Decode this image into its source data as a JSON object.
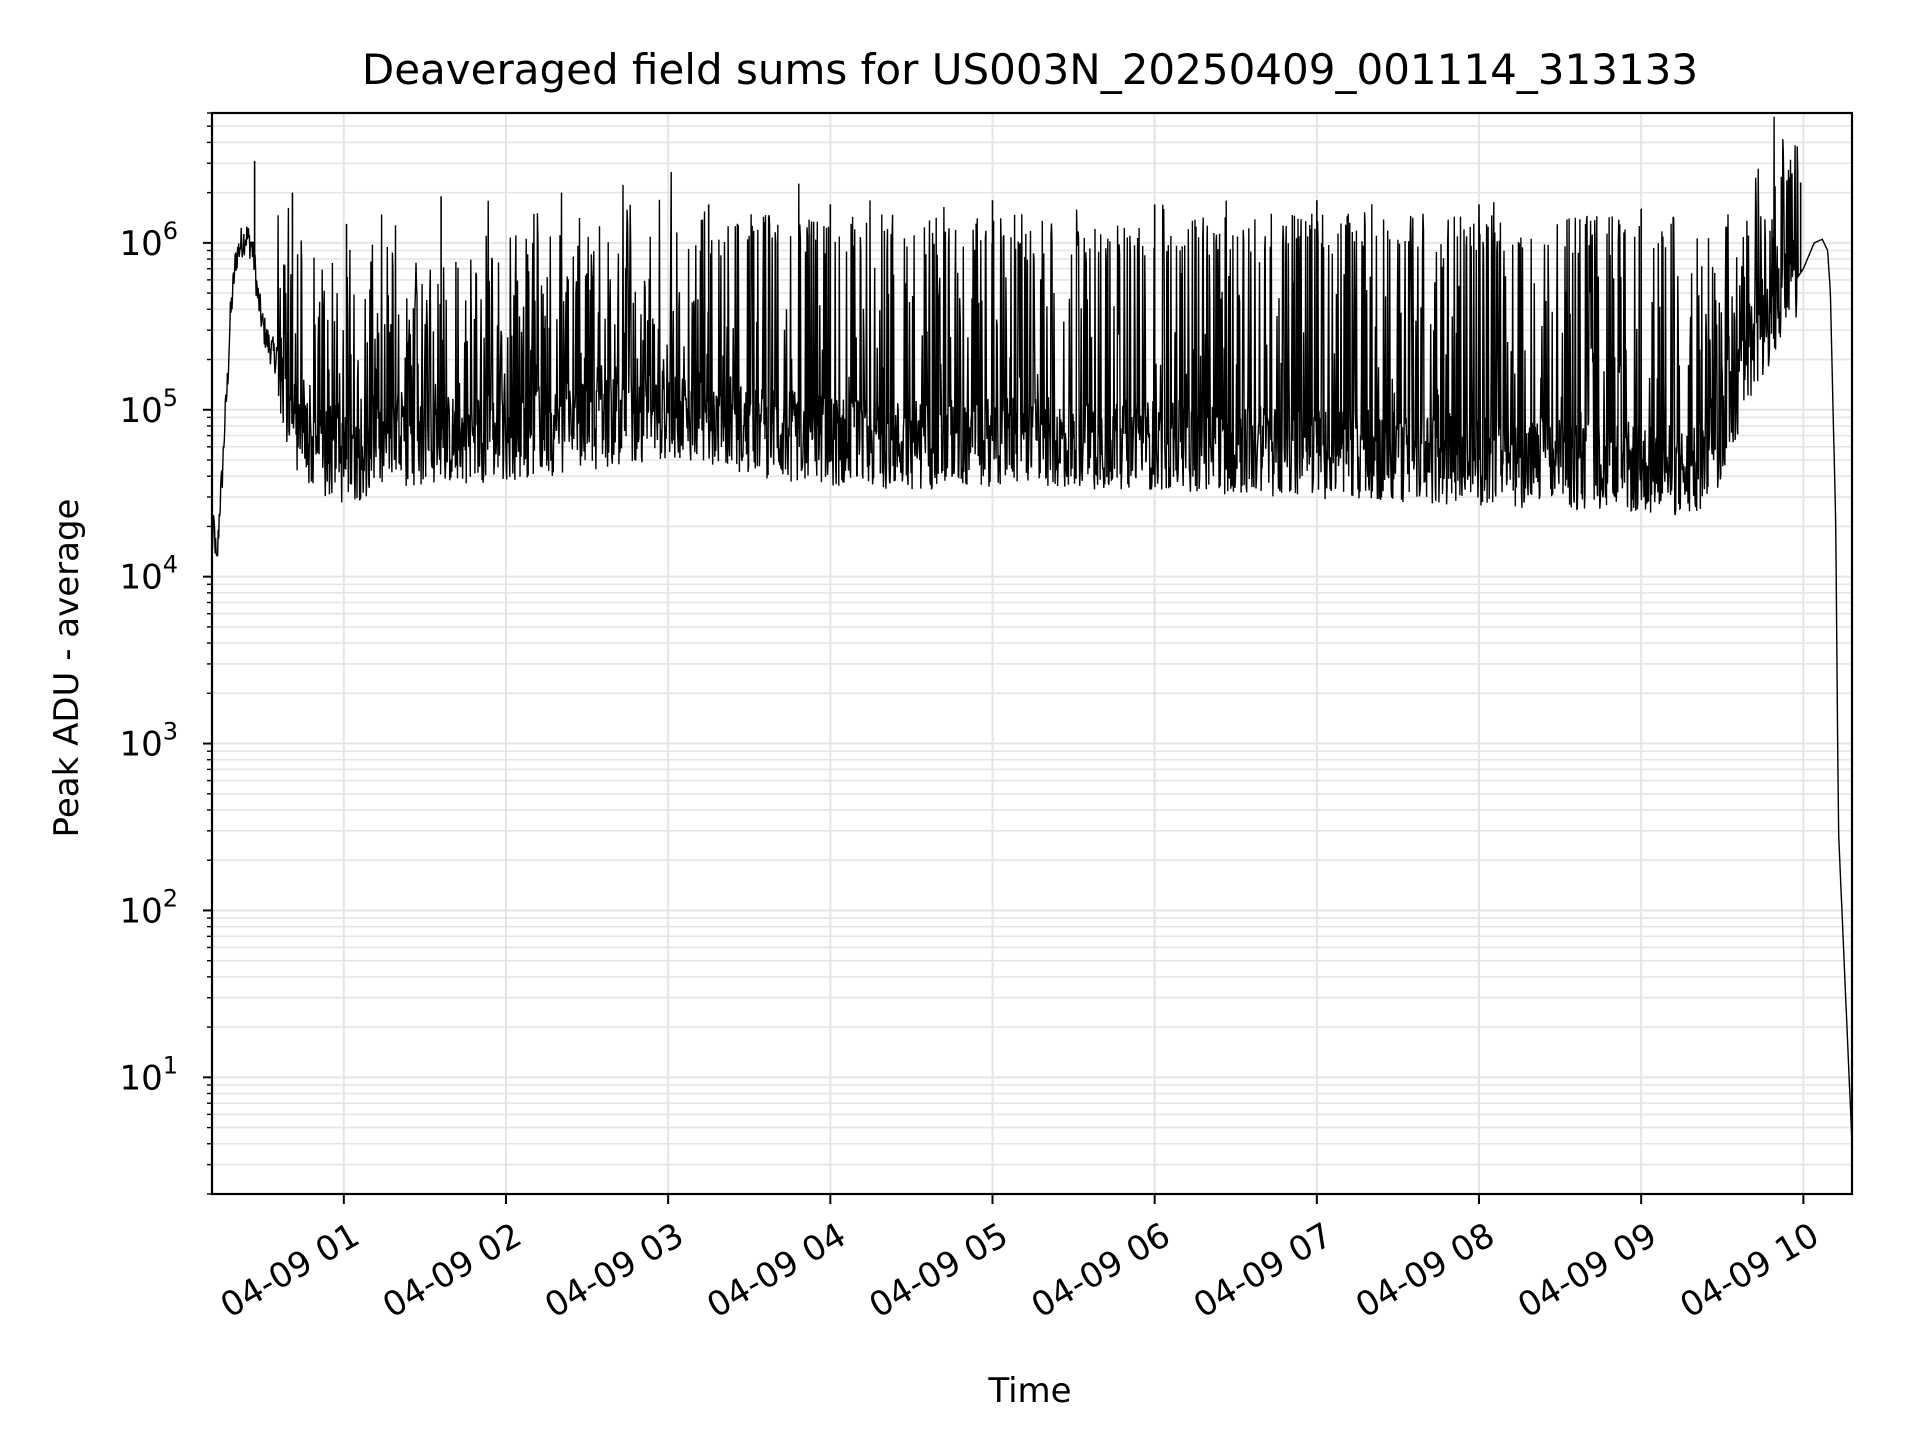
{
  "chart_data": {
    "type": "line",
    "title": "Deaveraged field sums for US003N_20250409_001114_313133",
    "xlabel": "Time",
    "ylabel": "Peak ADU - average",
    "yscale": "log",
    "ylim": [
      2,
      6000000
    ],
    "xlim": [
      "2025-04-09 00:11:14",
      "2025-04-09 10:18:00"
    ],
    "x_ticks": [
      {
        "value": "2025-04-09 01:00",
        "label": "04-09 01"
      },
      {
        "value": "2025-04-09 02:00",
        "label": "04-09 02"
      },
      {
        "value": "2025-04-09 03:00",
        "label": "04-09 03"
      },
      {
        "value": "2025-04-09 04:00",
        "label": "04-09 04"
      },
      {
        "value": "2025-04-09 05:00",
        "label": "04-09 05"
      },
      {
        "value": "2025-04-09 06:00",
        "label": "04-09 06"
      },
      {
        "value": "2025-04-09 07:00",
        "label": "04-09 07"
      },
      {
        "value": "2025-04-09 08:00",
        "label": "04-09 08"
      },
      {
        "value": "2025-04-09 09:00",
        "label": "04-09 09"
      },
      {
        "value": "2025-04-09 10:00",
        "label": "04-09 10"
      }
    ],
    "y_ticks": [
      {
        "value": 10,
        "base": "10",
        "exp": "1"
      },
      {
        "value": 100,
        "base": "10",
        "exp": "2"
      },
      {
        "value": 1000,
        "base": "10",
        "exp": "3"
      },
      {
        "value": 10000,
        "base": "10",
        "exp": "4"
      },
      {
        "value": 100000,
        "base": "10",
        "exp": "5"
      },
      {
        "value": 1000000,
        "base": "10",
        "exp": "6"
      }
    ],
    "grid": true,
    "line_color": "#000000",
    "grid_color": "#e5e5e5",
    "series": [
      {
        "x": [
          "2025-04-09 00:11:14",
          "2025-04-09 00:12:00",
          "2025-04-09 00:13:00",
          "2025-04-09 00:14:00",
          "2025-04-09 00:15:00",
          "2025-04-09 00:16:00",
          "2025-04-09 00:17:00",
          "2025-04-09 00:18:00",
          "2025-04-09 00:20:00",
          "2025-04-09 00:22:00",
          "2025-04-09 00:24:00",
          "2025-04-09 00:26:00",
          "2025-04-09 00:27:00",
          "2025-04-09 00:28:00",
          "2025-04-09 00:30:00",
          "2025-04-09 00:32:00",
          "2025-04-09 00:35:00",
          "2025-04-09 00:40:00",
          "2025-04-09 00:45:00",
          "2025-04-09 00:50:00",
          "2025-04-09 01:00:00",
          "2025-04-09 01:15:00",
          "2025-04-09 01:30:00",
          "2025-04-09 02:00:00",
          "2025-04-09 02:30:00",
          "2025-04-09 03:00:00",
          "2025-04-09 03:15:00",
          "2025-04-09 03:30:00",
          "2025-04-09 04:00:00",
          "2025-04-09 04:30:00",
          "2025-04-09 05:00:00",
          "2025-04-09 05:30:00",
          "2025-04-09 06:00:00",
          "2025-04-09 06:30:00",
          "2025-04-09 07:00:00",
          "2025-04-09 07:30:00",
          "2025-04-09 08:00:00",
          "2025-04-09 08:30:00",
          "2025-04-09 09:00:00",
          "2025-04-09 09:20:00",
          "2025-04-09 09:30:00",
          "2025-04-09 09:40:00",
          "2025-04-09 09:50:00",
          "2025-04-09 10:00:00",
          "2025-04-09 10:04:00",
          "2025-04-09 10:07:00",
          "2025-04-09 10:09:00",
          "2025-04-09 10:10:00",
          "2025-04-09 10:11:00",
          "2025-04-09 10:12:00",
          "2025-04-09 10:13:00",
          "2025-04-09 10:18:00"
        ],
        "y": [
          15000,
          20000,
          11000,
          25000,
          40000,
          85000,
          150000,
          350000,
          800000,
          1000000,
          1100000,
          950000,
          750000,
          500000,
          320000,
          250000,
          200000,
          90000,
          70000,
          55000,
          50000,
          60000,
          65000,
          70000,
          80000,
          95000,
          90000,
          75000,
          65000,
          62000,
          65000,
          63000,
          62000,
          58000,
          55000,
          52000,
          50000,
          47000,
          45000,
          42000,
          70000,
          200000,
          400000,
          700000,
          1000000,
          1050000,
          900000,
          500000,
          100000,
          20000,
          300,
          4
        ],
        "spikes": {
          "comment": "",
          "x": [
            "2025-04-09 00:27:00",
            "2025-04-09 00:41:00",
            "2025-04-09 01:01:00",
            "2025-04-09 01:36:00",
            "2025-04-09 03:15:00",
            "2025-04-09 04:00:00",
            "2025-04-09 05:00:00",
            "2025-04-09 06:00:00",
            "2025-04-09 07:00:00",
            "2025-04-09 08:00:00",
            "2025-04-09 09:00:00",
            "2025-04-09 09:59:00"
          ],
          "y": [
            3100000,
            2000000,
            1300000,
            1900000,
            1700000,
            1700000,
            1800000,
            1700000,
            1800000,
            1700000,
            1600000,
            2300000
          ]
        }
      }
    ]
  }
}
